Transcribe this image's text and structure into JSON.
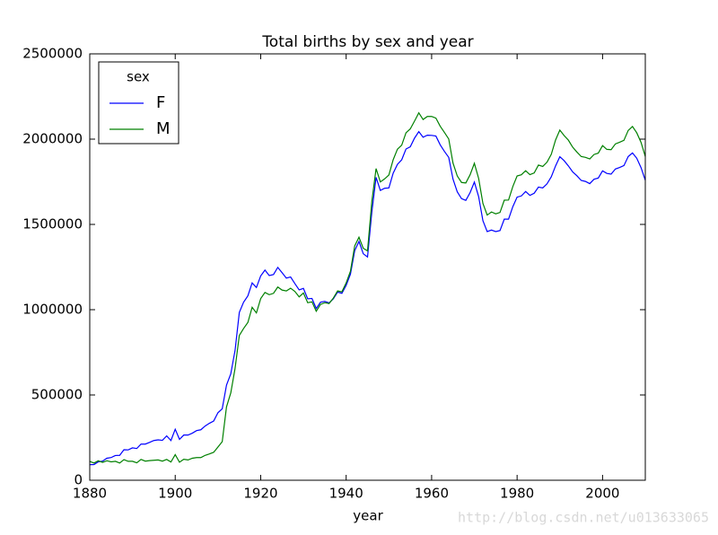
{
  "chart_data": {
    "type": "line",
    "title": "Total births by sex and year",
    "x_label": "year",
    "legend_title": "sex",
    "legend": "upper left",
    "watermark": "http://blog.csdn.net/u013633065",
    "xlim": [
      1880,
      2010
    ],
    "xticks": [
      1880,
      1900,
      1920,
      1940,
      1960,
      1980,
      2000
    ],
    "ylim": [
      0,
      2500000
    ],
    "yticks": [
      0,
      500000,
      1000000,
      1500000,
      2000000,
      2500000
    ],
    "grid": false,
    "x": [
      1880,
      1881,
      1882,
      1883,
      1884,
      1885,
      1886,
      1887,
      1888,
      1889,
      1890,
      1891,
      1892,
      1893,
      1894,
      1895,
      1896,
      1897,
      1898,
      1899,
      1900,
      1901,
      1902,
      1903,
      1904,
      1905,
      1906,
      1907,
      1908,
      1909,
      1910,
      1911,
      1912,
      1913,
      1914,
      1915,
      1916,
      1917,
      1918,
      1919,
      1920,
      1921,
      1922,
      1923,
      1924,
      1925,
      1926,
      1927,
      1928,
      1929,
      1930,
      1931,
      1932,
      1933,
      1934,
      1935,
      1936,
      1937,
      1938,
      1939,
      1940,
      1941,
      1942,
      1943,
      1944,
      1945,
      1946,
      1947,
      1948,
      1949,
      1950,
      1951,
      1952,
      1953,
      1954,
      1955,
      1956,
      1957,
      1958,
      1959,
      1960,
      1961,
      1962,
      1963,
      1964,
      1965,
      1966,
      1967,
      1968,
      1969,
      1970,
      1971,
      1972,
      1973,
      1974,
      1975,
      1976,
      1977,
      1978,
      1979,
      1980,
      1981,
      1982,
      1983,
      1984,
      1985,
      1986,
      1987,
      1988,
      1989,
      1990,
      1991,
      1992,
      1993,
      1994,
      1995,
      1996,
      1997,
      1998,
      1999,
      2000,
      2001,
      2002,
      2003,
      2004,
      2005,
      2006,
      2007,
      2008,
      2009,
      2010
    ],
    "series": [
      {
        "name": "F",
        "color": "#0000ff",
        "values": [
          91000,
          92000,
          108000,
          112000,
          129000,
          133000,
          145000,
          146000,
          179000,
          178000,
          190000,
          186000,
          212000,
          212000,
          222000,
          233000,
          237000,
          234000,
          260000,
          233000,
          299000,
          240000,
          265000,
          265000,
          276000,
          291000,
          296000,
          318000,
          334000,
          347000,
          396000,
          419000,
          558000,
          624000,
          761000,
          984000,
          1044000,
          1081000,
          1157000,
          1130000,
          1198000,
          1232000,
          1200000,
          1206000,
          1248000,
          1217000,
          1185000,
          1192000,
          1153000,
          1116000,
          1125000,
          1064000,
          1066000,
          1007000,
          1044000,
          1049000,
          1040000,
          1064000,
          1103000,
          1096000,
          1143000,
          1208000,
          1346000,
          1400000,
          1328000,
          1309000,
          1571000,
          1776000,
          1699000,
          1712000,
          1714000,
          1800000,
          1852000,
          1879000,
          1942000,
          1955000,
          2006000,
          2044000,
          2011000,
          2023000,
          2022000,
          2018000,
          1967000,
          1928000,
          1893000,
          1766000,
          1691000,
          1651000,
          1641000,
          1686000,
          1748000,
          1663000,
          1522000,
          1458000,
          1467000,
          1458000,
          1464000,
          1531000,
          1531000,
          1604000,
          1660000,
          1667000,
          1693000,
          1670000,
          1683000,
          1719000,
          1714000,
          1738000,
          1779000,
          1843000,
          1897000,
          1874000,
          1843000,
          1808000,
          1785000,
          1758000,
          1752000,
          1739000,
          1765000,
          1772000,
          1814000,
          1799000,
          1795000,
          1825000,
          1834000,
          1845000,
          1898000,
          1919000,
          1888000,
          1833000,
          1759000
        ]
      },
      {
        "name": "M",
        "color": "#008000",
        "values": [
          110000,
          101000,
          114000,
          105000,
          114000,
          108000,
          111000,
          101000,
          121000,
          111000,
          111000,
          102000,
          122000,
          112000,
          115000,
          117000,
          119000,
          112000,
          122000,
          107000,
          150000,
          106000,
          123000,
          119000,
          129000,
          133000,
          133000,
          146000,
          154000,
          164000,
          195000,
          226000,
          430000,
          512000,
          655000,
          849000,
          890000,
          925000,
          1014000,
          981000,
          1065000,
          1101000,
          1088000,
          1096000,
          1133000,
          1115000,
          1110000,
          1126000,
          1107000,
          1075000,
          1098000,
          1041000,
          1046000,
          991000,
          1031000,
          1041000,
          1036000,
          1068000,
          1110000,
          1105000,
          1157000,
          1225000,
          1374000,
          1425000,
          1360000,
          1345000,
          1633000,
          1827000,
          1749000,
          1767000,
          1790000,
          1879000,
          1941000,
          1965000,
          2037000,
          2060000,
          2106000,
          2154000,
          2115000,
          2133000,
          2133000,
          2123000,
          2076000,
          2039000,
          2001000,
          1860000,
          1784000,
          1746000,
          1743000,
          1791000,
          1858000,
          1770000,
          1623000,
          1555000,
          1573000,
          1562000,
          1570000,
          1642000,
          1643000,
          1722000,
          1784000,
          1791000,
          1815000,
          1792000,
          1802000,
          1848000,
          1840000,
          1865000,
          1911000,
          1995000,
          2053000,
          2021000,
          1994000,
          1953000,
          1924000,
          1898000,
          1893000,
          1884000,
          1910000,
          1918000,
          1962000,
          1940000,
          1938000,
          1972000,
          1982000,
          1993000,
          2051000,
          2074000,
          2037000,
          1981000,
          1898000
        ]
      }
    ]
  }
}
